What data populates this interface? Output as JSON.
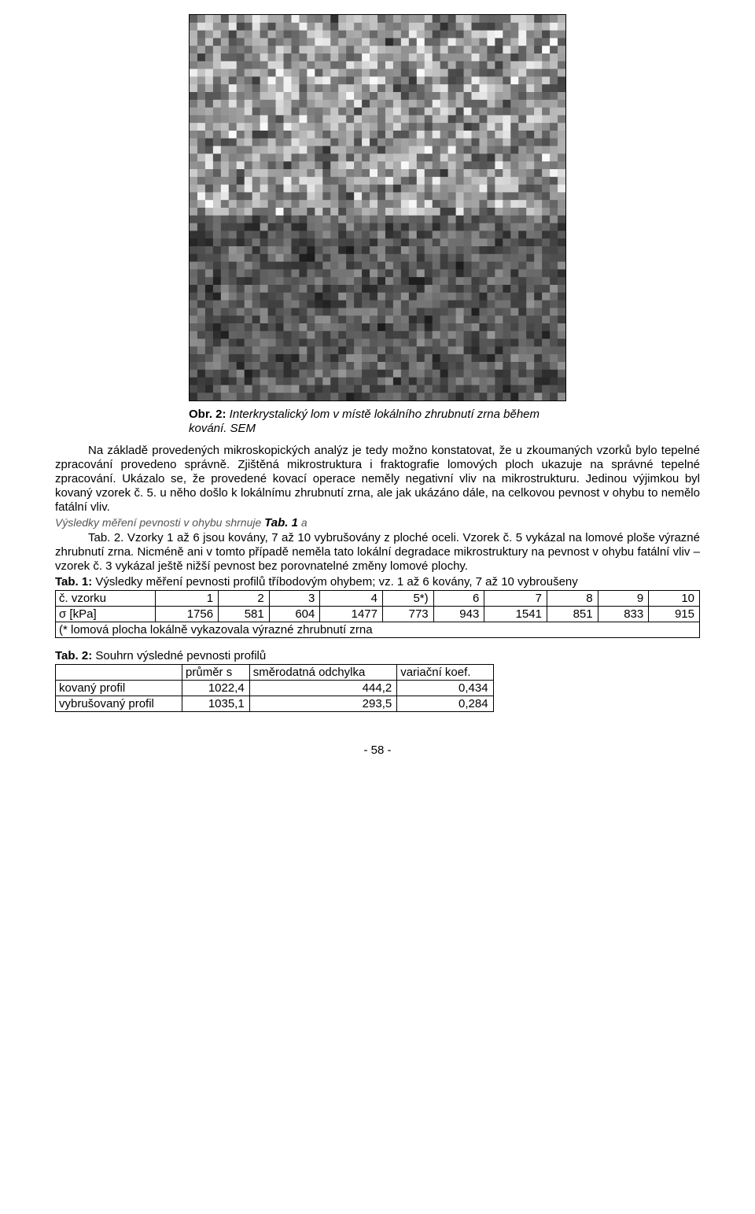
{
  "figure": {
    "caption_lead": "Obr. 2:",
    "caption_text": " Interkrystalický lom v místě lokálního zhrubnutí zrna během kování. SEM",
    "svg_seed_cols": 48,
    "svg_seed_rows": 50
  },
  "body": {
    "p1": "Na základě provedených mikroskopických analýz je tedy možno konstatovat, že u zkoumaných vzorků bylo tepelné zpracování provedeno správně. Zjištěná mikrostruktura i fraktografie lomových ploch ukazuje na správné tepelné zpracování. Ukázalo se, že provedené kovací operace neměly negativní vliv na mikrostrukturu. Jedinou výjimkou byl kovaný vzorek č. 5. u něho došlo k lokálnímu zhrubnutí zrna, ale jak ukázáno dále, na celkovou pevnost v ohybu to nemělo fatální vliv.",
    "res_line_italic": "Výsledky měření pevnosti v ohybu shrnuje ",
    "res_line_tab": "Tab. 1",
    "res_line_tail": " a",
    "p2": "Tab. 2. Vzorky 1 až 6 jsou kovány, 7 až 10 vybrušovány z ploché oceli. Vzorek č. 5 vykázal na lomové ploše výrazné zhrubnutí zrna. Nicméně ani v tomto případě neměla tato lokální degradace mikrostruktury na pevnost v ohybu fatální vliv – vzorek č. 3 vykázal ještě nižší pevnost bez porovnatelné změny lomové plochy."
  },
  "table1": {
    "caption_lead": "Tab. 1:",
    "caption_text": " Výsledky měření pevnosti profilů tříbodovým ohybem; vz. 1 až 6 kovány, 7 až 10 vybroušeny",
    "row1_label": "č. vzorku",
    "row1": [
      "1",
      "2",
      "3",
      "4",
      "5*)",
      "6",
      "7",
      "8",
      "9",
      "10"
    ],
    "row2_label": "σ [kPa]",
    "row2": [
      "1756",
      "581",
      "604",
      "1477",
      "773",
      "943",
      "1541",
      "851",
      "833",
      "915"
    ],
    "footnote": "(* lomová plocha lokálně vykazovala výrazné zhrubnutí zrna"
  },
  "table2": {
    "caption_lead": "Tab. 2:",
    "caption_text": " Souhrn výsledné pevnosti profilů",
    "head": [
      "",
      "průměr s",
      "směrodatná odchylka",
      "variační koef."
    ],
    "rows": [
      {
        "label": "kovaný profil",
        "vals": [
          "1022,4",
          "444,2",
          "0,434"
        ]
      },
      {
        "label": "vybrušovaný profil",
        "vals": [
          "1035,1",
          "293,5",
          "0,284"
        ]
      }
    ]
  },
  "page_number": "- 58 -"
}
